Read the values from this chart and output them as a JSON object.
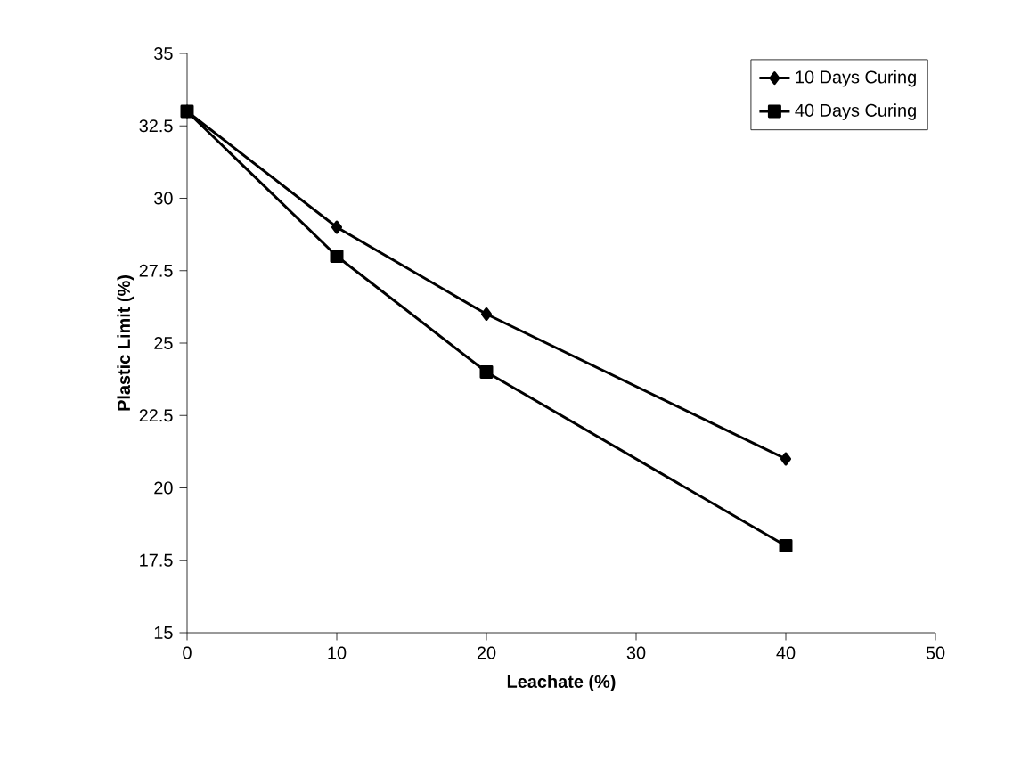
{
  "chart_data": {
    "type": "line",
    "xlabel": "Leachate (%)",
    "ylabel": "Plastic Limit (%)",
    "series": [
      {
        "name": "10 Days Curing",
        "color": "#000000",
        "marker": "diamond",
        "x": [
          0,
          10,
          20,
          40
        ],
        "values": [
          33,
          29,
          26,
          21
        ]
      },
      {
        "name": "40 Days Curing",
        "color": "#000000",
        "marker": "square",
        "x": [
          0,
          10,
          20,
          40
        ],
        "values": [
          33,
          28,
          24,
          18
        ]
      }
    ],
    "xlim": [
      0,
      50
    ],
    "xticks": [
      0,
      10,
      20,
      30,
      40,
      50
    ],
    "ylim": [
      15,
      35
    ],
    "yticks": [
      15,
      17.5,
      20,
      22.5,
      25,
      27.5,
      30,
      32.5,
      35
    ],
    "grid": false,
    "legend": "top right",
    "line_style": "solid"
  }
}
